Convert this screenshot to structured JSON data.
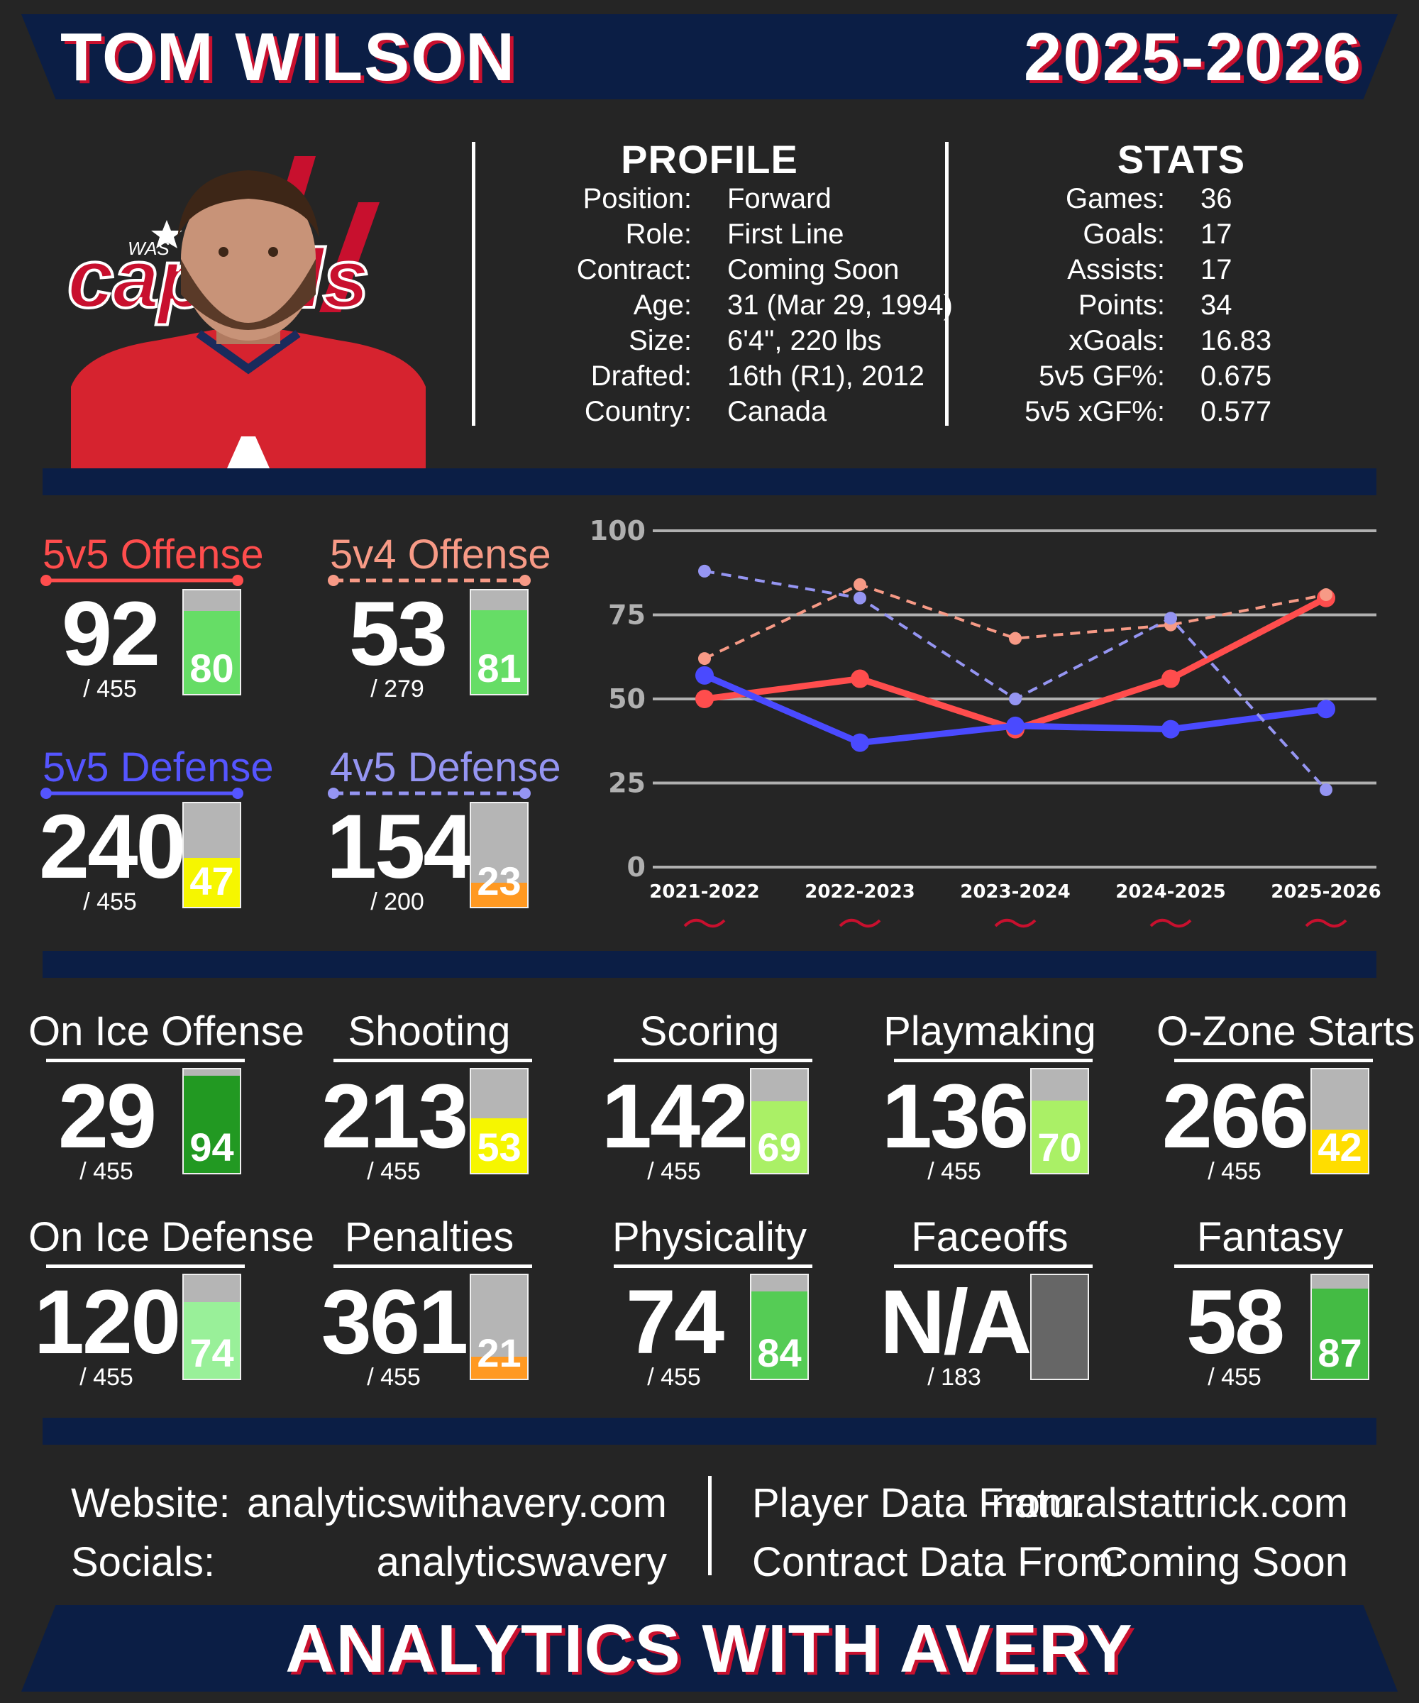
{
  "header": {
    "player_name": "TOM WILSON",
    "season": "2025-2026"
  },
  "team_logo": {
    "text": "capitals",
    "small_text": "WAS"
  },
  "profile": {
    "title": "PROFILE",
    "rows": [
      {
        "label": "Position:",
        "value": "Forward"
      },
      {
        "label": "Role:",
        "value": "First Line"
      },
      {
        "label": "Contract:",
        "value": "Coming Soon"
      },
      {
        "label": "Age:",
        "value": "31 (Mar 29, 1994)"
      },
      {
        "label": "Size:",
        "value": "6'4\", 220 lbs"
      },
      {
        "label": "Drafted:",
        "value": "16th (R1), 2012"
      },
      {
        "label": "Country:",
        "value": "Canada"
      }
    ]
  },
  "stats": {
    "title": "STATS",
    "rows": [
      {
        "label": "Games:",
        "value": "36"
      },
      {
        "label": "Goals:",
        "value": "17"
      },
      {
        "label": "Assists:",
        "value": "17"
      },
      {
        "label": "Points:",
        "value": "34"
      },
      {
        "label": "xGoals:",
        "value": "16.83"
      },
      {
        "label": "5v5 GF%:",
        "value": "0.675"
      },
      {
        "label": "5v5 xGF%:",
        "value": "0.577"
      }
    ]
  },
  "situations": [
    {
      "title": "5v5 Offense",
      "rank": "92",
      "denom": "/ 455",
      "pct": 80,
      "pct_label": "80",
      "title_color": "#ff4d4d",
      "line": "solid",
      "fill": "#66dd66"
    },
    {
      "title": "5v4 Offense",
      "rank": "53",
      "denom": "/ 279",
      "pct": 81,
      "pct_label": "81",
      "title_color": "#f79a86",
      "line": "dashed",
      "fill": "#66dd66"
    },
    {
      "title": "5v5 Defense",
      "rank": "240",
      "denom": "/ 455",
      "pct": 47,
      "pct_label": "47",
      "title_color": "#5555ff",
      "line": "solid",
      "fill": "#f6f600"
    },
    {
      "title": "4v5 Defense",
      "rank": "154",
      "denom": "/ 200",
      "pct": 23,
      "pct_label": "23",
      "title_color": "#9595f2",
      "line": "dashed",
      "fill": "#ff9922"
    }
  ],
  "chart_data": {
    "type": "line",
    "x": [
      "2021-2022",
      "2022-2023",
      "2023-2024",
      "2024-2025",
      "2025-2026"
    ],
    "ylim": [
      0,
      100
    ],
    "yticks": [
      "0",
      "25",
      "50",
      "75",
      "100"
    ],
    "grid": true,
    "series": [
      {
        "values": [
          50,
          56,
          41,
          56,
          80
        ],
        "color": "#ff4d4d",
        "style": "solid"
      },
      {
        "values": [
          62,
          84,
          68,
          72,
          81
        ],
        "color": "#f79a86",
        "style": "dashed"
      },
      {
        "values": [
          57,
          37,
          42,
          41,
          47
        ],
        "color": "#4a4aff",
        "style": "solid"
      },
      {
        "values": [
          88,
          80,
          50,
          74,
          23
        ],
        "color": "#9595f2",
        "style": "dashed"
      }
    ]
  },
  "metrics": [
    {
      "title": "On Ice Offense",
      "rank": "29",
      "denom": "/ 455",
      "pct": 94,
      "pct_label": "94",
      "fill": "#229922"
    },
    {
      "title": "Shooting",
      "rank": "213",
      "denom": "/ 455",
      "pct": 53,
      "pct_label": "53",
      "fill": "#f6f600"
    },
    {
      "title": "Scoring",
      "rank": "142",
      "denom": "/ 455",
      "pct": 69,
      "pct_label": "69",
      "fill": "#aaf066"
    },
    {
      "title": "Playmaking",
      "rank": "136",
      "denom": "/ 455",
      "pct": 70,
      "pct_label": "70",
      "fill": "#aaf066"
    },
    {
      "title": "O-Zone Starts",
      "rank": "266",
      "denom": "/ 455",
      "pct": 42,
      "pct_label": "42",
      "fill": "#ffdd00"
    },
    {
      "title": "On Ice Defense",
      "rank": "120",
      "denom": "/ 455",
      "pct": 74,
      "pct_label": "74",
      "fill": "#99f099"
    },
    {
      "title": "Penalties",
      "rank": "361",
      "denom": "/ 455",
      "pct": 21,
      "pct_label": "21",
      "fill": "#ff9922"
    },
    {
      "title": "Physicality",
      "rank": "74",
      "denom": "/ 455",
      "pct": 84,
      "pct_label": "84",
      "fill": "#55cc55"
    },
    {
      "title": "Faceoffs",
      "rank": "N/A",
      "denom": "/ 183",
      "pct": 0,
      "pct_label": "",
      "fill": "#666666",
      "empty": true
    },
    {
      "title": "Fantasy",
      "rank": "58",
      "denom": "/ 455",
      "pct": 87,
      "pct_label": "87",
      "fill": "#44bb44"
    }
  ],
  "footer": {
    "website_label": "Website:",
    "website_value": "analyticswithavery.com",
    "socials_label": "Socials:",
    "socials_value": "analyticswavery",
    "player_data_label": "Player Data From:",
    "player_data_value": "naturalstattrick.com",
    "contract_data_label": "Contract Data From:",
    "contract_data_value": "Coming Soon"
  },
  "brand": {
    "text": "ANALYTICS WITH AVERY"
  }
}
